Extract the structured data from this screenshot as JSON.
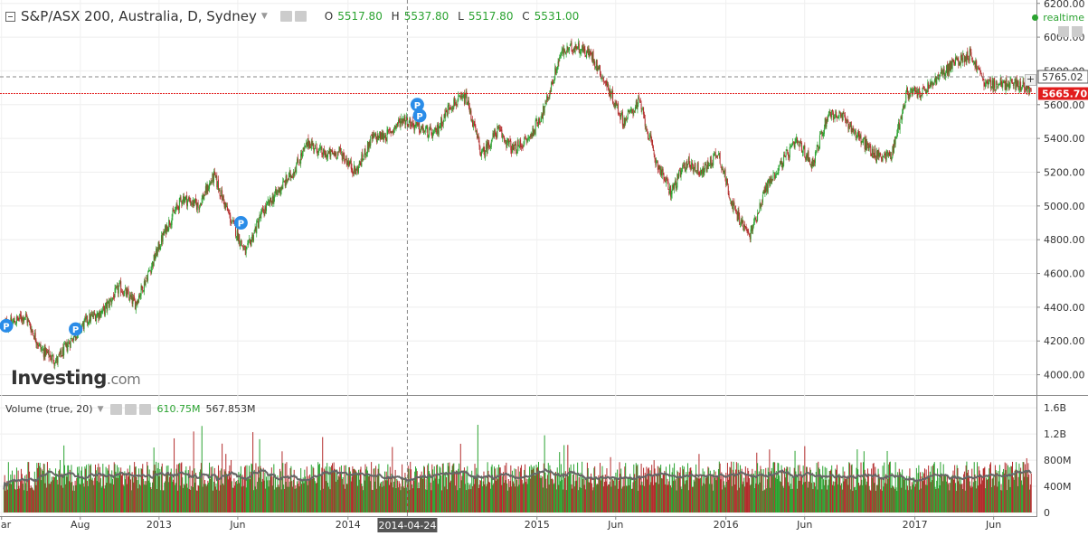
{
  "header": {
    "title": "S&P/ASX 200, Australia, D, Sydney",
    "ohlc": [
      {
        "label": "O",
        "value": "5517.80"
      },
      {
        "label": "H",
        "value": "5537.80"
      },
      {
        "label": "L",
        "value": "5517.80"
      },
      {
        "label": "C",
        "value": "5531.00"
      }
    ],
    "realtime": "realtime"
  },
  "logo": {
    "main": "Investing",
    "suffix": ".com"
  },
  "volume_header": {
    "label": "Volume (true, 20)",
    "value1": "610.75M",
    "value2": "567.853M"
  },
  "price_labels": {
    "crosshair": "5765.02",
    "last": "5665.70"
  },
  "crosshair_date": "2014-04-24",
  "colors": {
    "up": "#2ba331",
    "down": "#b32c2c",
    "last_price": "#e11d1d",
    "ma": "#666666",
    "marker": "#2a8ce8"
  },
  "chart_data": {
    "type": "candlestick",
    "x_tick_labels": [
      "Mar",
      "Aug",
      "2013",
      "Jun",
      "2014",
      "2014-04-24",
      "2015",
      "Jun",
      "2016",
      "Jun",
      "2017",
      "Jun"
    ],
    "x_range": [
      "2012-03",
      "2017-08"
    ],
    "price_axis": {
      "ticks": [
        "6200.00",
        "6000.00",
        "5800.00",
        "5600.00",
        "5400.00",
        "5200.00",
        "5000.00",
        "4800.00",
        "4600.00",
        "4400.00",
        "4200.00",
        "4000.00"
      ],
      "range": [
        3880,
        6220
      ]
    },
    "price_series": [
      [
        "2012-03",
        4300
      ],
      [
        "2012-04",
        4350
      ],
      [
        "2012-05",
        4150
      ],
      [
        "2012-06",
        4080
      ],
      [
        "2012-07",
        4220
      ],
      [
        "2012-08",
        4330
      ],
      [
        "2012-09",
        4380
      ],
      [
        "2012-10",
        4520
      ],
      [
        "2012-11",
        4420
      ],
      [
        "2012-12",
        4640
      ],
      [
        "2013-01",
        4880
      ],
      [
        "2013-02",
        5050
      ],
      [
        "2013-03",
        5000
      ],
      [
        "2013-04",
        5180
      ],
      [
        "2013-05",
        4930
      ],
      [
        "2013-06",
        4720
      ],
      [
        "2013-07",
        4950
      ],
      [
        "2013-08",
        5080
      ],
      [
        "2013-09",
        5200
      ],
      [
        "2013-10",
        5380
      ],
      [
        "2013-11",
        5300
      ],
      [
        "2013-12",
        5320
      ],
      [
        "2014-01",
        5200
      ],
      [
        "2014-02",
        5400
      ],
      [
        "2014-03",
        5420
      ],
      [
        "2014-04",
        5520
      ],
      [
        "2014-05",
        5460
      ],
      [
        "2014-06",
        5420
      ],
      [
        "2014-07",
        5600
      ],
      [
        "2014-08",
        5640
      ],
      [
        "2014-09",
        5300
      ],
      [
        "2014-10",
        5450
      ],
      [
        "2014-11",
        5330
      ],
      [
        "2014-12",
        5400
      ],
      [
        "2015-01",
        5580
      ],
      [
        "2015-02",
        5900
      ],
      [
        "2015-03",
        5950
      ],
      [
        "2015-04",
        5890
      ],
      [
        "2015-05",
        5700
      ],
      [
        "2015-06",
        5500
      ],
      [
        "2015-07",
        5620
      ],
      [
        "2015-08",
        5280
      ],
      [
        "2015-09",
        5080
      ],
      [
        "2015-10",
        5260
      ],
      [
        "2015-11",
        5200
      ],
      [
        "2015-12",
        5320
      ],
      [
        "2016-01",
        4980
      ],
      [
        "2016-02",
        4820
      ],
      [
        "2016-03",
        5100
      ],
      [
        "2016-04",
        5250
      ],
      [
        "2016-05",
        5380
      ],
      [
        "2016-06",
        5250
      ],
      [
        "2016-07",
        5550
      ],
      [
        "2016-08",
        5520
      ],
      [
        "2016-09",
        5400
      ],
      [
        "2016-10",
        5300
      ],
      [
        "2016-11",
        5300
      ],
      [
        "2016-12",
        5670
      ],
      [
        "2017-01",
        5670
      ],
      [
        "2017-02",
        5760
      ],
      [
        "2017-03",
        5850
      ],
      [
        "2017-04",
        5900
      ],
      [
        "2017-05",
        5720
      ],
      [
        "2017-06",
        5720
      ],
      [
        "2017-07",
        5720
      ],
      [
        "2017-08",
        5690
      ]
    ],
    "markers": [
      {
        "label": "P",
        "date": "2012-03",
        "price": 4290
      },
      {
        "label": "P",
        "date": "2012-07",
        "price": 4270
      },
      {
        "label": "P",
        "date": "2013-06",
        "price": 4900
      },
      {
        "label": "P",
        "date": "2014-05",
        "price": 5600
      },
      {
        "label": "P",
        "date": "2014-05",
        "price": 5535
      }
    ],
    "volume_axis": {
      "ticks": [
        "1.6B",
        "1.2B",
        "800M",
        "400M",
        "0"
      ],
      "range": [
        0,
        1700000000
      ]
    },
    "volume_avg_approx": 600000000,
    "last_price": 5665.7,
    "crosshair_price": 5765.02
  }
}
